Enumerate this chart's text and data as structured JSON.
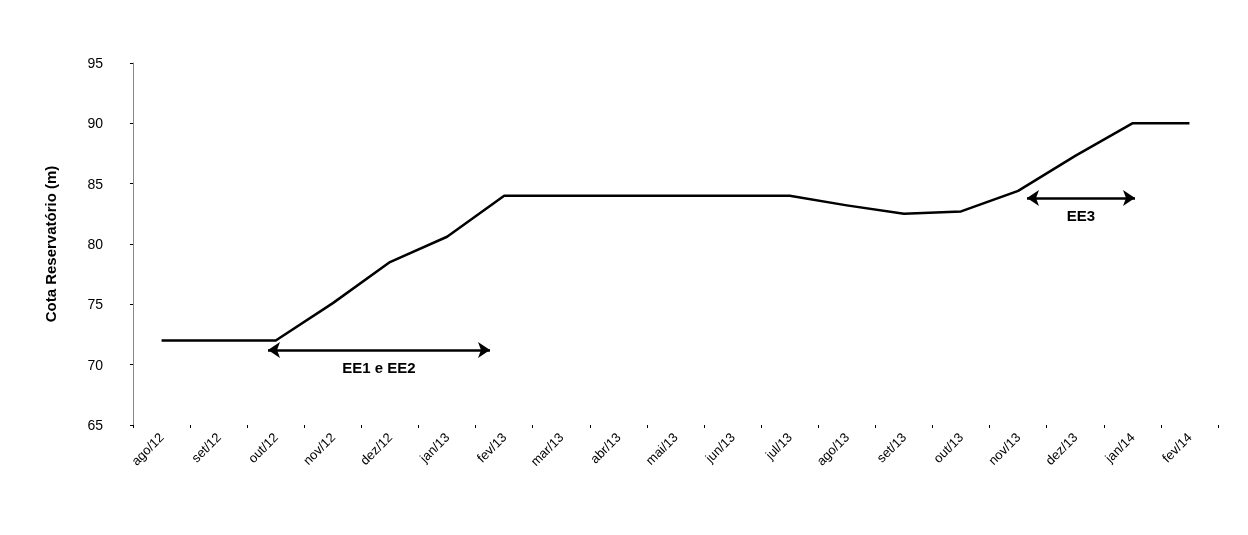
{
  "chart_data": {
    "type": "line",
    "ylabel": "Cota Reservatório (m)",
    "categories": [
      "ago/12",
      "set/12",
      "out/12",
      "nov/12",
      "dez/12",
      "jan/13",
      "fev/13",
      "mar/13",
      "abr/13",
      "mai/13",
      "jun/13",
      "jul/13",
      "ago/13",
      "set/13",
      "out/13",
      "nov/13",
      "dez/13",
      "jan/14",
      "fev/14"
    ],
    "series": [
      {
        "color": "#000000",
        "values": [
          72,
          72,
          72,
          75.1,
          78.5,
          80.6,
          84,
          84,
          84,
          84,
          84,
          84,
          83.2,
          82.5,
          82.7,
          84.4,
          87.3,
          90,
          90
        ]
      }
    ],
    "ylim": [
      65,
      95
    ],
    "yticks": [
      65,
      70,
      75,
      80,
      85,
      90,
      95
    ],
    "grid": false,
    "marker": "none",
    "line_style": "solid",
    "annotations": [
      "EE1 e EE2",
      "EE3"
    ]
  }
}
